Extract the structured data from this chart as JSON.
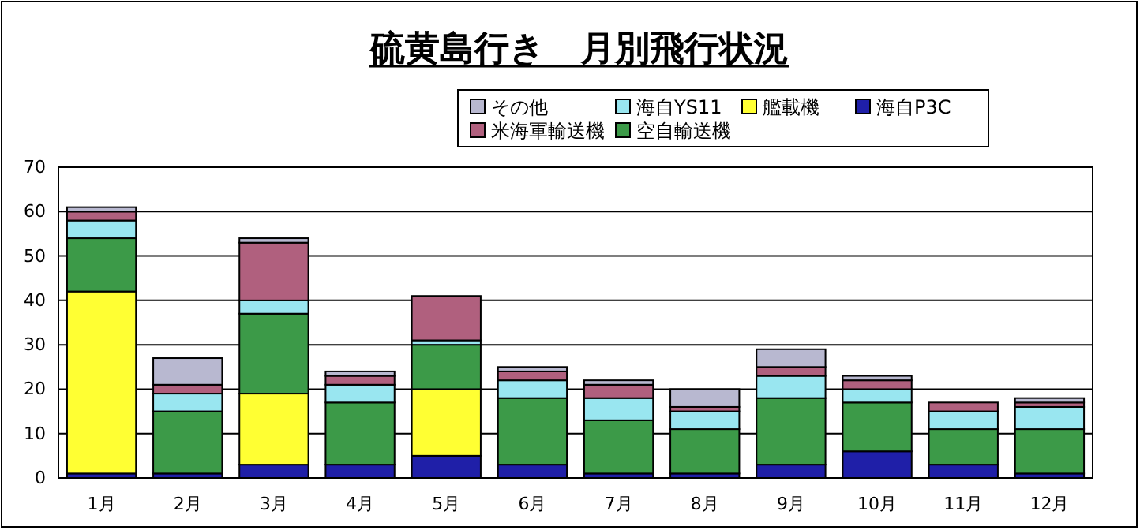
{
  "chart_data": {
    "type": "bar",
    "title": "硫黄島行き　月別飛行状況",
    "stacked": true,
    "categories": [
      "1月",
      "2月",
      "3月",
      "4月",
      "5月",
      "6月",
      "7月",
      "8月",
      "9月",
      "10月",
      "11月",
      "12月"
    ],
    "series": [
      {
        "name": "海自P3C",
        "color": "#1f1fa8",
        "values": [
          1,
          1,
          3,
          3,
          5,
          3,
          1,
          1,
          3,
          6,
          3,
          1
        ]
      },
      {
        "name": "艦載機",
        "color": "#ffff33",
        "values": [
          41,
          0,
          16,
          0,
          15,
          0,
          0,
          0,
          0,
          0,
          0,
          0
        ]
      },
      {
        "name": "空自輸送機",
        "color": "#3c9a48",
        "values": [
          12,
          14,
          18,
          14,
          10,
          15,
          12,
          10,
          15,
          11,
          8,
          10
        ]
      },
      {
        "name": "海自YS11",
        "color": "#99e6f0",
        "values": [
          4,
          4,
          3,
          4,
          1,
          4,
          5,
          4,
          5,
          3,
          4,
          5
        ]
      },
      {
        "name": "米海軍輸送機",
        "color": "#b0607e",
        "values": [
          2,
          2,
          13,
          2,
          10,
          2,
          3,
          1,
          2,
          2,
          2,
          1
        ]
      },
      {
        "name": "その他",
        "color": "#b8b8d0",
        "values": [
          1,
          6,
          1,
          1,
          0,
          1,
          1,
          4,
          4,
          1,
          0,
          1
        ]
      }
    ],
    "ylim": [
      0,
      70
    ],
    "yticks": [
      0,
      10,
      20,
      30,
      40,
      50,
      60,
      70
    ],
    "grid": "y",
    "legend": "top"
  }
}
